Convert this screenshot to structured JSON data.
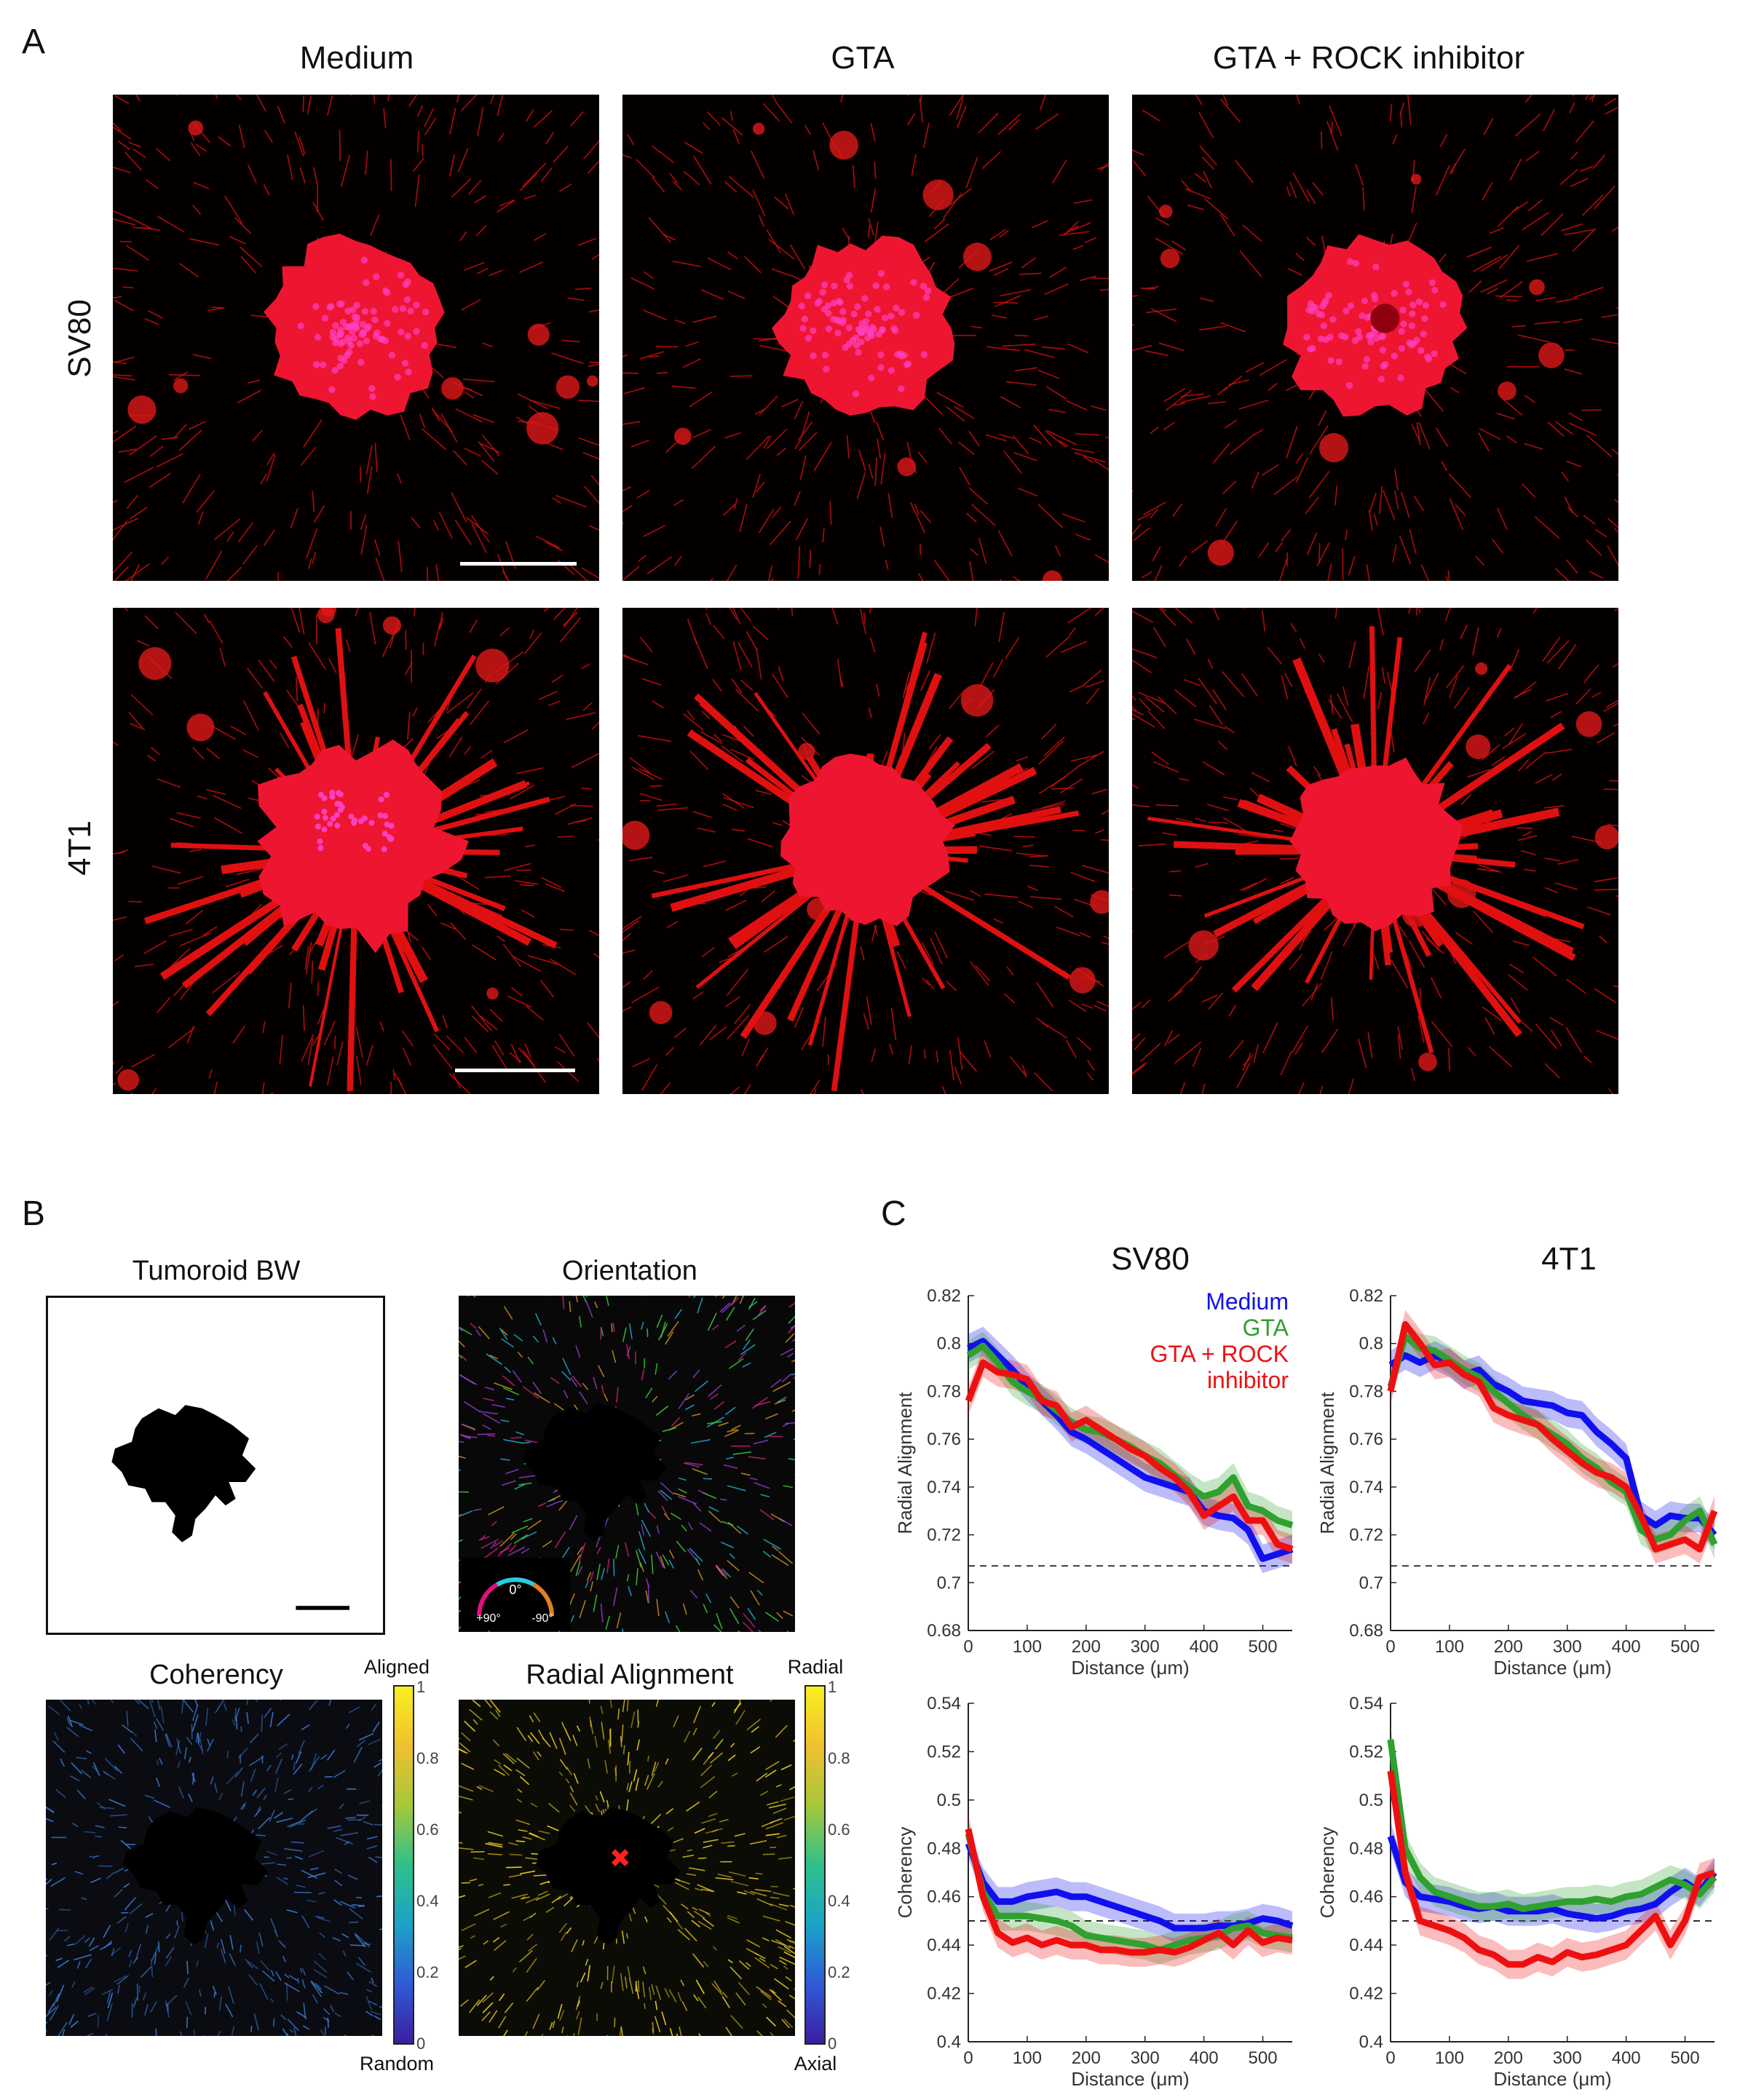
{
  "panels": {
    "a": "A",
    "b": "B",
    "c": "C"
  },
  "panel_a": {
    "columns": [
      "Medium",
      "GTA",
      "GTA + ROCK inhibitor"
    ],
    "rows": [
      "SV80",
      "4T1"
    ]
  },
  "panel_b": {
    "titles": {
      "bw": "Tumoroid BW",
      "orientation": "Orientation",
      "coherency": "Coherency",
      "radial": "Radial Alignment"
    },
    "orientation_wheel": {
      "top": "0°",
      "left": "+90°",
      "right": "-90°"
    },
    "coherency_colorbar": {
      "top": "Aligned",
      "bottom": "Random",
      "ticks": [
        "1",
        "0.8",
        "0.6",
        "0.4",
        "0.2",
        "0"
      ]
    },
    "radial_colorbar": {
      "top": "Radial",
      "bottom": "Axial",
      "ticks": [
        "1",
        "0.8",
        "0.6",
        "0.4",
        "0.2",
        "0"
      ]
    },
    "colors": {
      "coherency_tint": "#3a7bd5",
      "radial_tint": "#f0d020",
      "marker": "#ff2020"
    }
  },
  "panel_c": {
    "column_titles": [
      "SV80",
      "4T1"
    ],
    "legend": [
      "Medium",
      "GTA",
      "GTA + ROCK",
      "inhibitor"
    ],
    "legend_position": "top-right"
  },
  "chart_data": [
    {
      "type": "line",
      "title": "SV80",
      "xlabel": "Distance (μm)",
      "ylabel": "Radial Alignment",
      "xlim": [
        0,
        550
      ],
      "ylim": [
        0.68,
        0.82
      ],
      "xticks": [
        0,
        100,
        200,
        300,
        400,
        500
      ],
      "yticks": [
        0.68,
        0.7,
        0.72,
        0.74,
        0.76,
        0.78,
        0.8,
        0.82
      ],
      "ytick_labels": [
        "0.68",
        "0.7",
        "0.72",
        "0.74",
        "0.76",
        "0.78",
        "0.8",
        "0.82"
      ],
      "reference_line": 0.707,
      "x": [
        0,
        25,
        50,
        75,
        100,
        125,
        150,
        175,
        200,
        225,
        250,
        275,
        300,
        325,
        350,
        375,
        400,
        425,
        450,
        475,
        500,
        525,
        550
      ],
      "series": [
        {
          "name": "Medium",
          "color": "#1010ee",
          "values": [
            0.798,
            0.801,
            0.795,
            0.789,
            0.782,
            0.776,
            0.77,
            0.763,
            0.76,
            0.756,
            0.752,
            0.748,
            0.744,
            0.742,
            0.74,
            0.738,
            0.73,
            0.728,
            0.727,
            0.722,
            0.71,
            0.712,
            0.714
          ]
        },
        {
          "name": "GTA",
          "color": "#30a030",
          "values": [
            0.795,
            0.799,
            0.792,
            0.784,
            0.78,
            0.777,
            0.772,
            0.767,
            0.764,
            0.763,
            0.76,
            0.757,
            0.753,
            0.75,
            0.745,
            0.74,
            0.736,
            0.738,
            0.744,
            0.732,
            0.73,
            0.726,
            0.724
          ]
        },
        {
          "name": "GTA + ROCK inhibitor",
          "color": "#ee1010",
          "values": [
            0.776,
            0.792,
            0.788,
            0.787,
            0.785,
            0.776,
            0.774,
            0.765,
            0.768,
            0.764,
            0.76,
            0.756,
            0.753,
            0.748,
            0.744,
            0.738,
            0.728,
            0.732,
            0.736,
            0.726,
            0.726,
            0.716,
            0.714
          ]
        }
      ]
    },
    {
      "type": "line",
      "title": "4T1",
      "xlabel": "Distance (μm)",
      "ylabel": "Radial Alignment",
      "xlim": [
        0,
        550
      ],
      "ylim": [
        0.68,
        0.82
      ],
      "xticks": [
        0,
        100,
        200,
        300,
        400,
        500
      ],
      "yticks": [
        0.68,
        0.7,
        0.72,
        0.74,
        0.76,
        0.78,
        0.8,
        0.82
      ],
      "ytick_labels": [
        "0.68",
        "0.7",
        "0.72",
        "0.74",
        "0.76",
        "0.78",
        "0.8",
        "0.82"
      ],
      "reference_line": 0.707,
      "x": [
        0,
        25,
        50,
        75,
        100,
        125,
        150,
        175,
        200,
        225,
        250,
        275,
        300,
        325,
        350,
        375,
        400,
        425,
        450,
        475,
        500,
        525,
        550
      ],
      "series": [
        {
          "name": "Medium",
          "color": "#1010ee",
          "values": [
            0.791,
            0.795,
            0.792,
            0.795,
            0.792,
            0.787,
            0.789,
            0.783,
            0.78,
            0.776,
            0.775,
            0.774,
            0.771,
            0.77,
            0.763,
            0.758,
            0.752,
            0.728,
            0.724,
            0.728,
            0.727,
            0.727,
            0.72
          ]
        },
        {
          "name": "GTA",
          "color": "#30a030",
          "values": [
            0.782,
            0.803,
            0.798,
            0.797,
            0.793,
            0.789,
            0.786,
            0.78,
            0.775,
            0.77,
            0.766,
            0.762,
            0.758,
            0.752,
            0.748,
            0.742,
            0.738,
            0.722,
            0.718,
            0.72,
            0.726,
            0.73,
            0.716
          ]
        },
        {
          "name": "GTA + ROCK inhibitor",
          "color": "#ee1010",
          "values": [
            0.78,
            0.808,
            0.8,
            0.791,
            0.792,
            0.787,
            0.784,
            0.773,
            0.77,
            0.768,
            0.766,
            0.76,
            0.755,
            0.75,
            0.746,
            0.744,
            0.74,
            0.728,
            0.714,
            0.716,
            0.718,
            0.714,
            0.73
          ]
        }
      ]
    },
    {
      "type": "line",
      "title": "",
      "xlabel": "Distance (μm)",
      "ylabel": "Coherency",
      "xlim": [
        0,
        550
      ],
      "ylim": [
        0.4,
        0.54
      ],
      "xticks": [
        0,
        100,
        200,
        300,
        400,
        500
      ],
      "yticks": [
        0.4,
        0.42,
        0.44,
        0.46,
        0.48,
        0.5,
        0.52,
        0.54
      ],
      "ytick_labels": [
        "0.4",
        "0.42",
        "0.44",
        "0.46",
        "0.48",
        "0.5",
        "0.52",
        "0.54"
      ],
      "reference_line": 0.45,
      "x": [
        0,
        25,
        50,
        75,
        100,
        125,
        150,
        175,
        200,
        225,
        250,
        275,
        300,
        325,
        350,
        375,
        400,
        425,
        450,
        475,
        500,
        525,
        550
      ],
      "series": [
        {
          "name": "Medium",
          "color": "#1010ee",
          "values": [
            0.482,
            0.466,
            0.458,
            0.458,
            0.46,
            0.461,
            0.462,
            0.46,
            0.46,
            0.458,
            0.456,
            0.454,
            0.452,
            0.45,
            0.447,
            0.447,
            0.447,
            0.448,
            0.448,
            0.449,
            0.451,
            0.45,
            0.448
          ]
        },
        {
          "name": "GTA",
          "color": "#30a030",
          "values": [
            0.486,
            0.462,
            0.452,
            0.452,
            0.452,
            0.451,
            0.45,
            0.448,
            0.444,
            0.443,
            0.442,
            0.441,
            0.44,
            0.438,
            0.44,
            0.442,
            0.443,
            0.444,
            0.447,
            0.448,
            0.445,
            0.444,
            0.443
          ]
        },
        {
          "name": "GTA + ROCK inhibitor",
          "color": "#ee1010",
          "values": [
            0.488,
            0.46,
            0.445,
            0.441,
            0.443,
            0.44,
            0.442,
            0.44,
            0.44,
            0.438,
            0.438,
            0.437,
            0.437,
            0.438,
            0.437,
            0.439,
            0.442,
            0.445,
            0.44,
            0.446,
            0.441,
            0.443,
            0.442
          ]
        }
      ]
    },
    {
      "type": "line",
      "title": "",
      "xlabel": "Distance (μm)",
      "ylabel": "Coherency",
      "xlim": [
        0,
        550
      ],
      "ylim": [
        0.4,
        0.54
      ],
      "xticks": [
        0,
        100,
        200,
        300,
        400,
        500
      ],
      "yticks": [
        0.4,
        0.42,
        0.44,
        0.46,
        0.48,
        0.5,
        0.52,
        0.54
      ],
      "ytick_labels": [
        "0.4",
        "0.42",
        "0.44",
        "0.46",
        "0.48",
        "0.5",
        "0.52",
        "0.54"
      ],
      "reference_line": 0.45,
      "x": [
        0,
        25,
        50,
        75,
        100,
        125,
        150,
        175,
        200,
        225,
        250,
        275,
        300,
        325,
        350,
        375,
        400,
        425,
        450,
        475,
        500,
        525,
        550
      ],
      "series": [
        {
          "name": "Medium",
          "color": "#1010ee",
          "values": [
            0.485,
            0.466,
            0.46,
            0.459,
            0.458,
            0.456,
            0.455,
            0.456,
            0.454,
            0.454,
            0.454,
            0.455,
            0.453,
            0.452,
            0.451,
            0.452,
            0.454,
            0.455,
            0.457,
            0.462,
            0.466,
            0.462,
            0.47
          ]
        },
        {
          "name": "GTA",
          "color": "#30a030",
          "values": [
            0.525,
            0.48,
            0.468,
            0.462,
            0.46,
            0.458,
            0.456,
            0.456,
            0.457,
            0.455,
            0.456,
            0.457,
            0.458,
            0.458,
            0.459,
            0.458,
            0.46,
            0.461,
            0.464,
            0.467,
            0.465,
            0.461,
            0.468
          ]
        },
        {
          "name": "GTA + ROCK inhibitor",
          "color": "#ee1010",
          "values": [
            0.512,
            0.47,
            0.45,
            0.448,
            0.446,
            0.443,
            0.438,
            0.436,
            0.432,
            0.432,
            0.435,
            0.433,
            0.437,
            0.435,
            0.436,
            0.438,
            0.44,
            0.446,
            0.452,
            0.44,
            0.45,
            0.468,
            0.47
          ]
        }
      ]
    }
  ]
}
